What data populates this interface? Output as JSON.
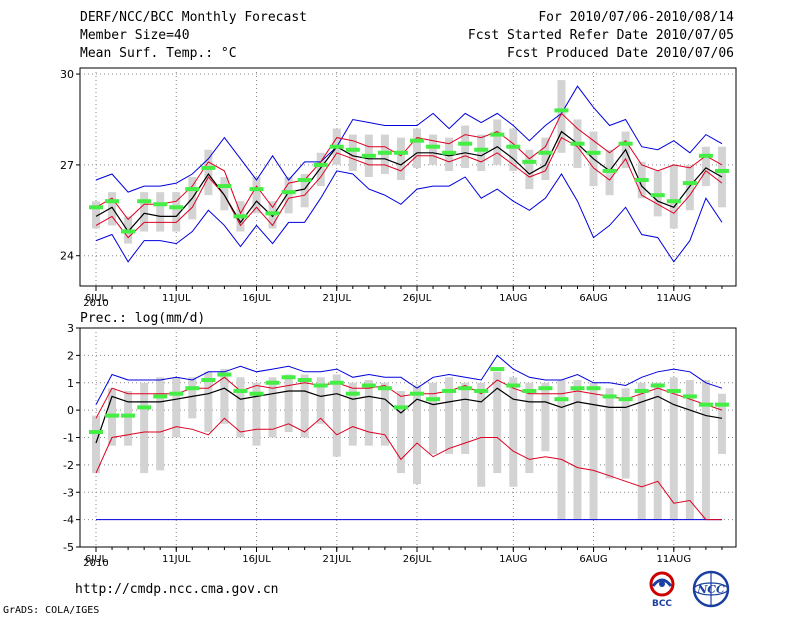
{
  "header": {
    "left": [
      "DERF/NCC/BCC Monthly Forecast",
      "Member Size=40",
      "Mean Surf. Temp.: °C"
    ],
    "right": [
      "For 2010/07/06-2010/08/14",
      "Fcst Started Refer Date 2010/07/05",
      "Fcst Produced Date 2010/07/06"
    ]
  },
  "footer": {
    "url": "http://cmdp.ncc.cma.gov.cn",
    "credit": "GrADS: COLA/IGES"
  },
  "logos": {
    "left": "BCC",
    "right": "NCC"
  },
  "colors": {
    "envelope": "#0000dd",
    "spread": "#dd0022",
    "mean": "#000000",
    "box": "#d3d3d3",
    "ensemble": "#44ee44",
    "grid": "#888888"
  },
  "chart_data": [
    {
      "type": "line",
      "title": "Mean Surf. Temp.: °C",
      "x_tick_labels": [
        "6JUL",
        "11JUL",
        "16JUL",
        "21JUL",
        "26JUL",
        "1AUG",
        "6AUG",
        "11AUG"
      ],
      "x_tick_index": [
        0,
        5,
        10,
        15,
        20,
        26,
        31,
        36
      ],
      "year_label": "2010",
      "ylim": [
        23,
        30.2
      ],
      "y_ticks": [
        24,
        27,
        30
      ],
      "series": [
        {
          "name": "max",
          "values": [
            26.5,
            26.7,
            26.1,
            26.3,
            26.3,
            26.4,
            26.7,
            27.2,
            27.9,
            27.2,
            26.5,
            27.3,
            26.5,
            27.1,
            27.1,
            27.6,
            28.5,
            28.4,
            28.3,
            28.3,
            28.3,
            28.7,
            28.2,
            28.7,
            28.4,
            28.7,
            28.3,
            27.8,
            28.3,
            28.7,
            29.6,
            28.9,
            28.3,
            28.5,
            27.6,
            27.5,
            27.8,
            27.4,
            28.0,
            27.7
          ]
        },
        {
          "name": "upper",
          "values": [
            25.6,
            25.9,
            25.2,
            25.7,
            25.7,
            25.8,
            26.3,
            27.1,
            26.8,
            25.4,
            26.3,
            25.6,
            26.4,
            26.5,
            27.1,
            27.9,
            27.8,
            27.6,
            27.6,
            27.3,
            27.9,
            27.8,
            27.7,
            28.0,
            27.9,
            28.1,
            27.7,
            27.2,
            27.6,
            28.7,
            28.2,
            27.8,
            27.4,
            27.8,
            27.0,
            26.8,
            27.0,
            26.9,
            27.3,
            27.0
          ]
        },
        {
          "name": "mean",
          "values": [
            25.3,
            25.6,
            24.8,
            25.4,
            25.3,
            25.3,
            25.9,
            26.7,
            26.0,
            25.1,
            25.8,
            25.3,
            26.1,
            26.2,
            26.9,
            27.6,
            27.3,
            27.2,
            27.2,
            27.0,
            27.4,
            27.4,
            27.3,
            27.4,
            27.3,
            27.6,
            27.2,
            26.7,
            27.0,
            28.1,
            27.7,
            27.2,
            26.8,
            27.5,
            26.3,
            25.8,
            25.6,
            26.3,
            26.9,
            26.6
          ]
        },
        {
          "name": "lower",
          "values": [
            25.0,
            25.3,
            24.6,
            25.1,
            25.1,
            25.1,
            25.6,
            26.6,
            26.0,
            25.0,
            25.6,
            25.0,
            25.9,
            26.0,
            26.6,
            27.4,
            27.2,
            27.0,
            27.0,
            26.8,
            27.3,
            27.3,
            27.1,
            27.3,
            27.1,
            27.4,
            27.0,
            26.6,
            26.8,
            27.9,
            27.6,
            26.9,
            26.5,
            27.2,
            26.0,
            25.7,
            25.4,
            26.0,
            26.8,
            26.4
          ]
        },
        {
          "name": "min",
          "values": [
            24.5,
            24.7,
            23.8,
            24.5,
            24.5,
            24.4,
            24.8,
            25.5,
            25.0,
            24.3,
            25.0,
            24.4,
            25.1,
            25.1,
            25.9,
            26.8,
            26.7,
            26.2,
            26.0,
            25.7,
            26.2,
            26.3,
            26.3,
            26.6,
            25.9,
            26.2,
            25.8,
            25.5,
            25.9,
            26.7,
            25.8,
            24.6,
            25.0,
            25.6,
            24.7,
            24.6,
            23.8,
            24.5,
            25.9,
            25.1
          ]
        },
        {
          "name": "ensemble_marker",
          "values": [
            25.6,
            25.8,
            24.8,
            25.8,
            25.7,
            25.6,
            26.2,
            26.9,
            26.3,
            25.3,
            26.2,
            25.4,
            26.1,
            26.5,
            27.0,
            27.6,
            27.5,
            27.3,
            27.4,
            27.4,
            27.8,
            27.6,
            27.4,
            27.7,
            27.5,
            28.0,
            27.6,
            27.1,
            27.4,
            28.8,
            27.7,
            27.4,
            26.8,
            27.7,
            26.5,
            26.0,
            25.8,
            26.4,
            27.3,
            26.8
          ]
        },
        {
          "name": "box_low",
          "values": [
            24.9,
            25.0,
            24.4,
            24.8,
            24.8,
            24.8,
            25.2,
            26.0,
            25.5,
            24.8,
            25.4,
            24.9,
            25.4,
            25.6,
            26.3,
            27.0,
            26.8,
            26.6,
            26.7,
            26.5,
            26.9,
            27.0,
            26.8,
            26.9,
            26.8,
            27.0,
            26.8,
            26.2,
            26.5,
            27.4,
            26.9,
            26.3,
            26.0,
            26.9,
            25.9,
            25.3,
            24.9,
            25.5,
            26.3,
            25.6
          ]
        },
        {
          "name": "box_high",
          "values": [
            25.8,
            26.1,
            25.3,
            26.1,
            26.1,
            26.1,
            26.6,
            27.5,
            26.6,
            25.8,
            26.6,
            25.8,
            26.6,
            26.7,
            27.4,
            28.2,
            28.0,
            28.0,
            28.0,
            27.9,
            28.2,
            28.0,
            27.9,
            28.3,
            28.0,
            28.5,
            28.2,
            27.5,
            27.9,
            29.8,
            28.5,
            28.1,
            27.5,
            28.1,
            27.1,
            26.8,
            27.0,
            27.0,
            27.6,
            27.6
          ]
        }
      ]
    },
    {
      "type": "line",
      "title": "Prec.: log(mm/d)",
      "x_tick_labels": [
        "6JUL",
        "11JUL",
        "16JUL",
        "21JUL",
        "26JUL",
        "1AUG",
        "6AUG",
        "11AUG"
      ],
      "x_tick_index": [
        0,
        5,
        10,
        15,
        20,
        26,
        31,
        36
      ],
      "year_label": "2010",
      "ylim": [
        -5,
        3
      ],
      "y_ticks": [
        -5,
        -4,
        -3,
        -2,
        -1,
        0,
        1,
        2,
        3
      ],
      "series": [
        {
          "name": "max",
          "values": [
            0.2,
            1.3,
            1.1,
            1.1,
            1.1,
            1.2,
            1.1,
            1.4,
            1.4,
            1.6,
            1.4,
            1.5,
            1.6,
            1.4,
            1.4,
            1.5,
            1.2,
            1.3,
            1.2,
            1.2,
            0.8,
            1.2,
            1.3,
            1.2,
            1.1,
            2.0,
            1.5,
            1.2,
            1.1,
            1.1,
            1.3,
            1.0,
            1.0,
            0.9,
            1.2,
            1.4,
            1.5,
            1.4,
            1.0,
            0.8
          ]
        },
        {
          "name": "upper",
          "values": [
            -0.3,
            0.8,
            0.6,
            0.6,
            0.6,
            0.6,
            0.8,
            0.8,
            1.2,
            0.7,
            0.9,
            0.8,
            0.9,
            1.0,
            0.9,
            1.0,
            0.8,
            0.8,
            0.9,
            0.5,
            0.6,
            0.6,
            0.7,
            0.9,
            0.6,
            1.1,
            0.8,
            0.6,
            0.6,
            0.6,
            0.7,
            0.6,
            0.5,
            0.4,
            0.6,
            0.8,
            0.6,
            0.4,
            0.2,
            0.0
          ]
        },
        {
          "name": "mean",
          "values": [
            -1.2,
            0.5,
            0.3,
            0.3,
            0.3,
            0.4,
            0.5,
            0.6,
            0.8,
            0.4,
            0.5,
            0.6,
            0.7,
            0.7,
            0.5,
            0.6,
            0.4,
            0.5,
            0.4,
            -0.1,
            0.4,
            0.2,
            0.3,
            0.4,
            0.3,
            0.8,
            0.4,
            0.3,
            0.3,
            0.1,
            0.3,
            0.2,
            0.1,
            0.1,
            0.3,
            0.5,
            0.2,
            0.0,
            -0.2,
            -0.3
          ]
        },
        {
          "name": "lower",
          "values": [
            -2.3,
            -1.0,
            -0.9,
            -0.8,
            -0.8,
            -0.6,
            -0.7,
            -0.9,
            -0.3,
            -0.8,
            -0.7,
            -0.7,
            -0.5,
            -0.8,
            -0.3,
            -0.9,
            -0.6,
            -0.8,
            -0.9,
            -1.8,
            -1.2,
            -1.7,
            -1.4,
            -1.2,
            -1.0,
            -1.0,
            -1.5,
            -1.8,
            -1.7,
            -1.8,
            -2.1,
            -2.2,
            -2.4,
            -2.6,
            -2.8,
            -2.6,
            -3.4,
            -3.3,
            -4.0,
            -4.0
          ]
        },
        {
          "name": "min",
          "values": [
            -4.0,
            -4.0,
            -4.0,
            -4.0,
            -4.0,
            -4.0,
            -4.0,
            -4.0,
            -4.0,
            -4.0,
            -4.0,
            -4.0,
            -4.0,
            -4.0,
            -4.0,
            -4.0,
            -4.0,
            -4.0,
            -4.0,
            -4.0,
            -4.0,
            -4.0,
            -4.0,
            -4.0,
            -4.0,
            -4.0,
            -4.0,
            -4.0,
            -4.0,
            -4.0,
            -4.0,
            -4.0,
            -4.0,
            -4.0,
            -4.0,
            -4.0,
            -4.0,
            -4.0,
            -4.0,
            -4.0
          ]
        },
        {
          "name": "ensemble_marker",
          "values": [
            -0.8,
            -0.2,
            -0.2,
            0.1,
            0.5,
            0.6,
            0.8,
            1.1,
            1.3,
            0.7,
            0.6,
            1.0,
            1.2,
            1.1,
            0.9,
            1.0,
            0.6,
            0.9,
            0.8,
            0.1,
            0.6,
            0.4,
            0.7,
            0.8,
            0.7,
            1.5,
            0.9,
            0.7,
            0.8,
            0.4,
            0.8,
            0.8,
            0.5,
            0.4,
            0.7,
            0.9,
            0.7,
            0.5,
            0.2,
            0.2
          ]
        },
        {
          "name": "box_low",
          "values": [
            -2.3,
            -1.3,
            -1.3,
            -2.3,
            -2.2,
            -1.0,
            -0.3,
            -0.8,
            -0.5,
            -1.0,
            -1.3,
            -1.0,
            -0.8,
            -1.0,
            -0.5,
            -1.7,
            -1.3,
            -1.3,
            -1.3,
            -2.3,
            -2.7,
            -1.6,
            -1.6,
            -1.6,
            -2.8,
            -2.3,
            -2.8,
            -2.3,
            -1.5,
            -4.0,
            -4.0,
            -4.0,
            -2.5,
            -2.5,
            -4.0,
            -4.0,
            -4.0,
            -4.0,
            -4.0,
            -1.6
          ]
        },
        {
          "name": "box_high",
          "values": [
            -0.2,
            0.8,
            0.7,
            1.0,
            1.2,
            1.2,
            1.2,
            1.4,
            1.5,
            1.2,
            1.0,
            1.2,
            1.3,
            1.3,
            1.2,
            1.3,
            1.0,
            1.1,
            1.0,
            0.7,
            0.9,
            1.0,
            1.2,
            1.0,
            1.0,
            1.4,
            1.2,
            1.0,
            1.0,
            1.1,
            1.1,
            1.0,
            0.8,
            0.8,
            1.0,
            1.0,
            1.2,
            1.1,
            1.1,
            0.6
          ]
        }
      ]
    }
  ]
}
